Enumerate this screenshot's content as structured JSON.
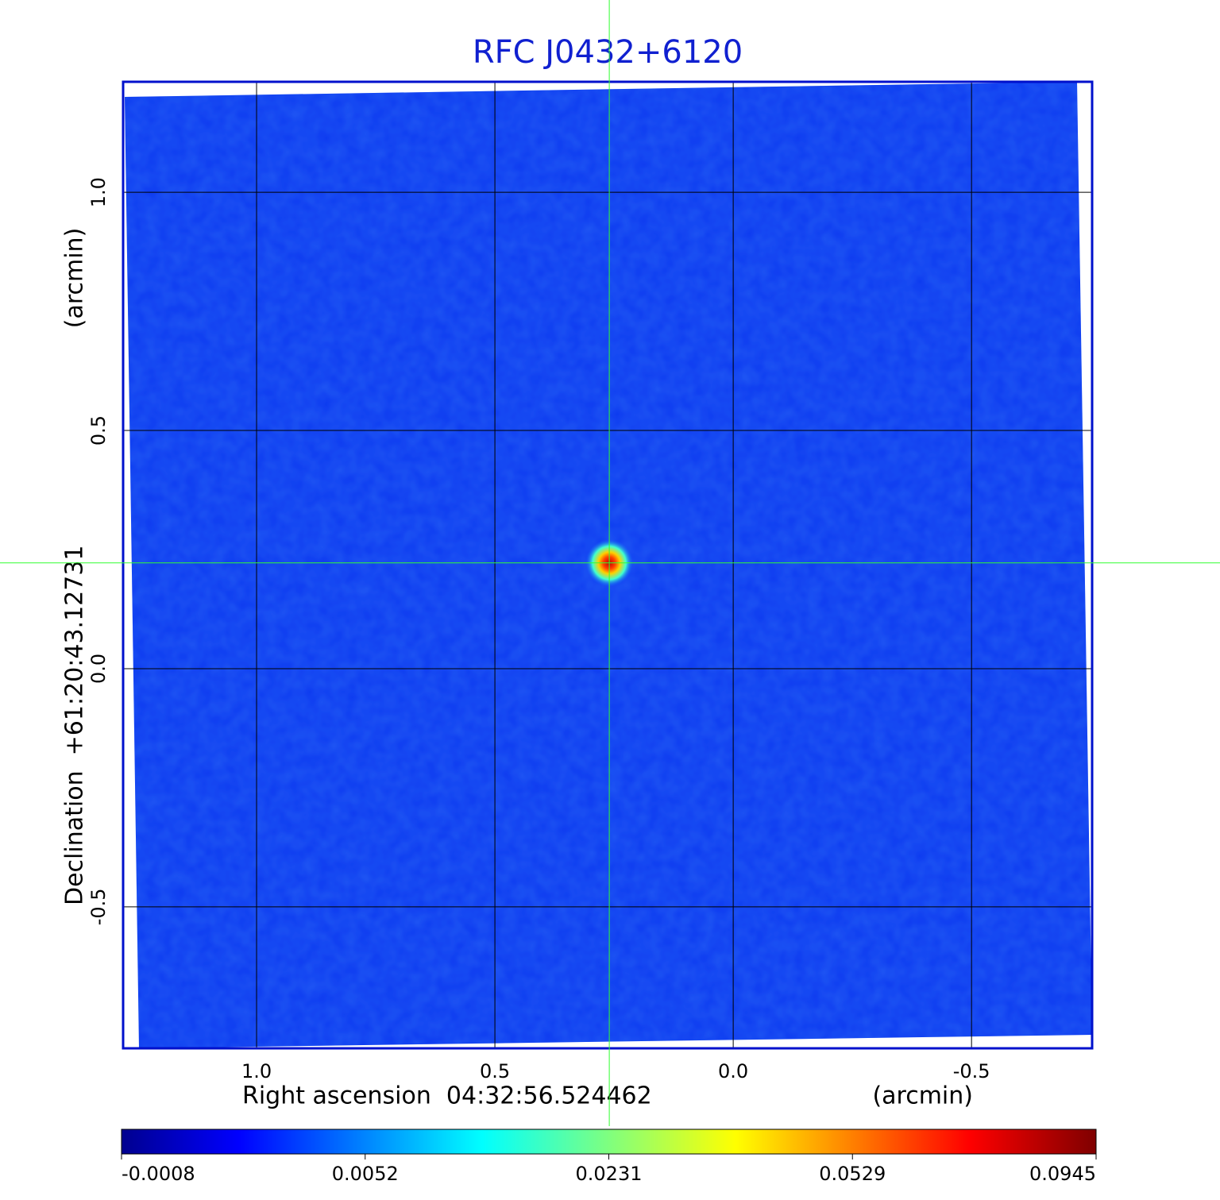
{
  "chart_data": {
    "type": "image",
    "title": "RFC J0432+6120",
    "x_label": "Right ascension  04:32:56.524462",
    "x_unit": "(arcmin)",
    "y_label": "Declination  +61:20:43.12731",
    "y_unit": "(arcmin)",
    "xlim": [
      1.28,
      -0.753
    ],
    "ylim": [
      -0.797,
      1.232
    ],
    "xticks": [
      {
        "value": 1,
        "label": "1.0"
      },
      {
        "value": 0.5,
        "label": "0.5"
      },
      {
        "value": 0,
        "label": "0.0"
      },
      -0.5
    ],
    "yticks": [
      {
        "value": 1,
        "label": "1.0"
      },
      {
        "value": 0.5,
        "label": "0.5"
      },
      {
        "value": 0,
        "label": "0.0"
      },
      -0.5
    ],
    "grid": true,
    "crosshair": {
      "x": 0.26,
      "y": 0.222
    },
    "colorbar": {
      "colormap": "jet",
      "ticks": [
        -0.0008,
        0.0052,
        0.0231,
        0.0529,
        0.0945
      ]
    }
  }
}
